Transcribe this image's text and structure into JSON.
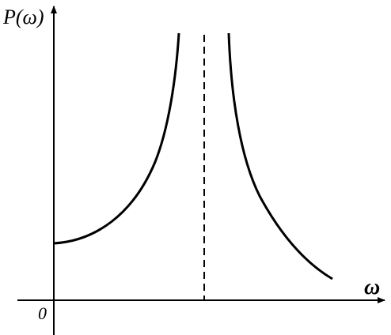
{
  "axes": {
    "y_label": "P(ω)",
    "x_label": "ω",
    "origin": "0"
  }
}
